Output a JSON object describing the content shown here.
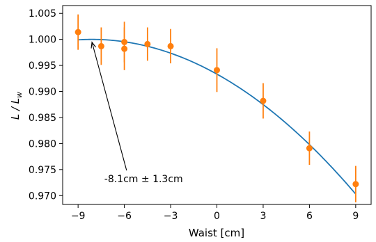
{
  "chart_data": {
    "type": "scatter",
    "xlabel": "Waist [cm]",
    "ylabel": "L / L_w",
    "xlim": [
      -10.0,
      10.0
    ],
    "ylim": [
      0.9683,
      1.0065
    ],
    "x_ticks": [
      -9,
      -6,
      -3,
      0,
      3,
      6,
      9
    ],
    "x_tick_labels": [
      "−9",
      "−6",
      "−3",
      "0",
      "3",
      "6",
      "9"
    ],
    "y_ticks": [
      0.97,
      0.975,
      0.98,
      0.985,
      0.99,
      0.995,
      1.0,
      1.005
    ],
    "y_tick_labels": [
      "0.970",
      "0.975",
      "0.980",
      "0.985",
      "0.990",
      "0.995",
      "1.000",
      "1.005"
    ],
    "grid": false,
    "colors": {
      "points": "#ff7f0e",
      "fit": "#1f77b4",
      "annotation": "#000000"
    },
    "series": [
      {
        "kind": "errorbar",
        "points": [
          {
            "x": -9.0,
            "y": 1.0014,
            "err": 0.0034
          },
          {
            "x": -7.5,
            "y": 0.9987,
            "err": 0.0036
          },
          {
            "x": -6.0,
            "y": 0.9995,
            "err": 0.0039
          },
          {
            "x": -6.0,
            "y": 0.9982,
            "err": 0.0041
          },
          {
            "x": -4.5,
            "y": 0.9991,
            "err": 0.0032
          },
          {
            "x": -3.0,
            "y": 0.9987,
            "err": 0.0033
          },
          {
            "x": 0.0,
            "y": 0.9941,
            "err": 0.0042
          },
          {
            "x": 3.0,
            "y": 0.9882,
            "err": 0.0034
          },
          {
            "x": 6.0,
            "y": 0.9791,
            "err": 0.0032
          },
          {
            "x": 9.0,
            "y": 0.9722,
            "err": 0.0035
          }
        ]
      },
      {
        "kind": "fit",
        "vertex_x": -8.1,
        "vertex_y": 1.0,
        "curvature": -0.0001016,
        "x_range": [
          -9.0,
          9.0
        ]
      }
    ],
    "annotations": [
      {
        "text": "-8.1cm ± 1.3cm",
        "arrow_to": [
          -8.1,
          1.0
        ],
        "text_at": [
          -7.3,
          0.9743
        ]
      }
    ]
  }
}
